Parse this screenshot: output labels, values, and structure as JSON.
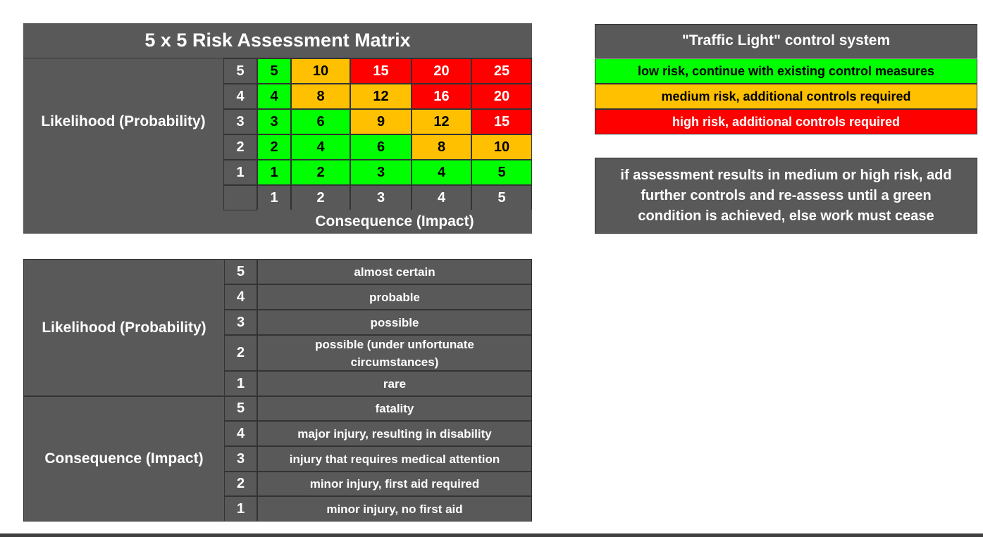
{
  "matrix": {
    "title": "5 x 5 Risk Assessment Matrix",
    "likelihood_label": "Likelihood (Probability)",
    "consequence_label": "Consequence (Impact)",
    "row_numbers": [
      "5",
      "4",
      "3",
      "2",
      "1"
    ],
    "col_numbers": [
      "1",
      "2",
      "3",
      "4",
      "5"
    ],
    "rows": [
      [
        "5",
        "10",
        "15",
        "20",
        "25"
      ],
      [
        "4",
        "8",
        "12",
        "16",
        "20"
      ],
      [
        "3",
        "6",
        "9",
        "12",
        "15"
      ],
      [
        "2",
        "4",
        "6",
        "8",
        "10"
      ],
      [
        "1",
        "2",
        "3",
        "4",
        "5"
      ]
    ],
    "colors": [
      [
        "green",
        "amber",
        "red",
        "red",
        "red"
      ],
      [
        "green",
        "amber",
        "amber",
        "red",
        "red"
      ],
      [
        "green",
        "green",
        "amber",
        "amber",
        "red"
      ],
      [
        "green",
        "green",
        "green",
        "amber",
        "amber"
      ],
      [
        "green",
        "green",
        "green",
        "green",
        "green"
      ]
    ],
    "color_hex": {
      "green": "#00ff00",
      "amber": "#ffc000",
      "red": "#ff0000",
      "panel": "#595959"
    }
  },
  "traffic": {
    "title": "\"Traffic Light\" control system",
    "low": "low risk, continue with existing control measures",
    "medium": "medium risk, additional controls required",
    "high": "high risk, additional controls required",
    "note": "if assessment results in medium or high risk, add further controls and re-assess until a green condition is achieved, else work must cease"
  },
  "legend": {
    "likelihood_label": "Likelihood (Probability)",
    "consequence_label": "Consequence (Impact)",
    "likelihood": [
      {
        "num": "5",
        "text": "almost certain"
      },
      {
        "num": "4",
        "text": "probable"
      },
      {
        "num": "3",
        "text": "possible"
      },
      {
        "num": "2",
        "text": "possible (under unfortunate circumstances)"
      },
      {
        "num": "1",
        "text": "rare"
      }
    ],
    "consequence": [
      {
        "num": "5",
        "text": "fatality"
      },
      {
        "num": "4",
        "text": "major injury, resulting in disability"
      },
      {
        "num": "3",
        "text": "injury that requires medical attention"
      },
      {
        "num": "2",
        "text": "minor injury, first aid required"
      },
      {
        "num": "1",
        "text": "minor injury, no first aid"
      }
    ]
  }
}
